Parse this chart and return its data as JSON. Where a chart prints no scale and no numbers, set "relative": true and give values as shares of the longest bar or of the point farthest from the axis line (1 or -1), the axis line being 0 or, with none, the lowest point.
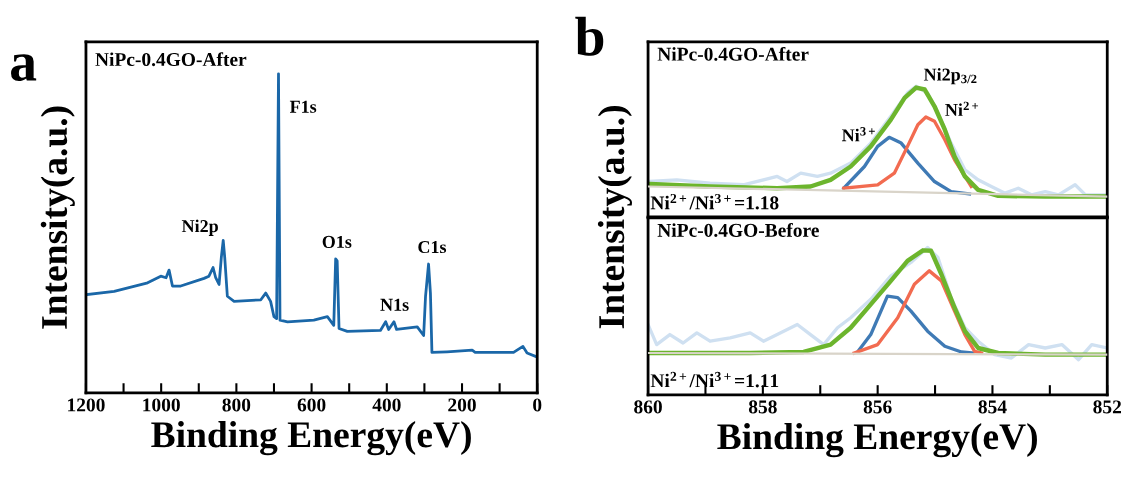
{
  "chart_data": [
    {
      "type": "line",
      "title": "a",
      "xlabel": "Binding Energy(eV)",
      "ylabel": "Intensity(a.u.)",
      "relative": true,
      "tick_labels": "x",
      "grid": false,
      "legend": false,
      "xlim": [
        1200,
        0
      ],
      "xticks": [
        1200,
        {
          "value": 1100,
          "label": null
        },
        1000,
        {
          "value": 900,
          "label": null
        },
        800,
        {
          "value": 700,
          "label": null
        },
        600,
        {
          "value": 500,
          "label": null
        },
        400,
        {
          "value": 300,
          "label": null
        },
        200,
        {
          "value": 100,
          "label": null
        },
        0
      ],
      "series": [
        {
          "color": "#1a67a8",
          "x": [
            1200,
            1125,
            1036,
            1001,
            987,
            979,
            970,
            948,
            886,
            873,
            862,
            855,
            846,
            840,
            835,
            831,
            824,
            806,
            735,
            722,
            709,
            700,
            693,
            688,
            684,
            664,
            594,
            558,
            541,
            536,
            532,
            527,
            505,
            417,
            403,
            395,
            381,
            374,
            319,
            302,
            297,
            289,
            284,
            280,
            240,
            173,
            165,
            63,
            38,
            27,
            3
          ],
          "values": [
            0.308,
            0.318,
            0.345,
            0.366,
            0.361,
            0.385,
            0.335,
            0.335,
            0.359,
            0.366,
            0.393,
            0.361,
            0.34,
            0.425,
            0.478,
            0.425,
            0.303,
            0.287,
            0.292,
            0.313,
            0.287,
            0.239,
            0.233,
            1.0,
            0.228,
            0.223,
            0.228,
            0.239,
            0.212,
            0.42,
            0.414,
            0.202,
            0.193,
            0.196,
            0.223,
            0.199,
            0.223,
            0.199,
            0.207,
            0.18,
            0.303,
            0.404,
            0.313,
            0.127,
            0.129,
            0.134,
            0.127,
            0.127,
            0.146,
            0.125,
            0.114
          ]
        }
      ],
      "annotations": [
        "NiPc-0.4GO-After",
        {
          "text": "Ni2p",
          "x": 835,
          "y": 0.478
        },
        {
          "text": "F1s",
          "x": 688,
          "y": 1.0
        },
        {
          "text": "O1s",
          "x": 536,
          "y": 0.42
        },
        {
          "text": "N1s",
          "x": 381,
          "y": 0.223
        },
        {
          "text": "C1s",
          "x": 289,
          "y": 0.404
        }
      ]
    },
    {
      "type": "line",
      "title": "b",
      "ylabel": "Intensity(a.u.)",
      "relative": true,
      "tick_labels": false,
      "grid": false,
      "legend": false,
      "xlim": [
        860,
        852
      ],
      "series": [
        {
          "color": "#cfe0f1",
          "x": [
            859.97,
            859.5,
            858.92,
            858.34,
            857.75,
            857.58,
            857.34,
            857.05,
            856.82,
            856.47,
            856.12,
            855.77,
            855.48,
            855.33,
            855.13,
            854.95,
            854.72,
            854.48,
            854.25,
            854.02,
            853.78,
            853.55,
            853.32,
            853.08,
            852.85,
            852.56,
            852.38,
            852.0
          ],
          "values": [
            0.271,
            0.284,
            0.258,
            0.246,
            0.31,
            0.271,
            0.335,
            0.31,
            0.335,
            0.412,
            0.565,
            0.77,
            0.949,
            1.0,
            0.949,
            0.796,
            0.565,
            0.361,
            0.284,
            0.233,
            0.182,
            0.22,
            0.169,
            0.194,
            0.169,
            0.246,
            0.169,
            0.169
          ]
        },
        {
          "color": "#d9d4c9",
          "x": [
            860,
            852
          ],
          "values": [
            0.233,
            0.156
          ]
        },
        {
          "color": "#3f7ab5",
          "x": [
            856.59,
            856.23,
            856.0,
            855.8,
            855.59,
            855.3,
            855.01,
            854.72,
            854.4
          ],
          "values": [
            0.22,
            0.386,
            0.54,
            0.609,
            0.565,
            0.412,
            0.271,
            0.194,
            0.176
          ]
        },
        {
          "color": "#f26b50",
          "x": [
            856.59,
            856.0,
            855.71,
            855.48,
            855.3,
            855.16,
            855.01,
            854.83,
            854.66,
            854.48,
            854.37
          ],
          "values": [
            0.22,
            0.246,
            0.335,
            0.54,
            0.706,
            0.765,
            0.732,
            0.591,
            0.437,
            0.31,
            0.233
          ]
        },
        {
          "color": "#6cb52d",
          "x": [
            859.97,
            858.92,
            857.75,
            857.17,
            856.82,
            856.47,
            856.12,
            855.77,
            855.53,
            855.33,
            855.18,
            855.01,
            854.83,
            854.66,
            854.48,
            854.25,
            853.9,
            853.08,
            852.0
          ],
          "values": [
            0.253,
            0.233,
            0.22,
            0.233,
            0.284,
            0.386,
            0.54,
            0.745,
            0.911,
            0.99,
            0.975,
            0.847,
            0.668,
            0.463,
            0.31,
            0.207,
            0.161,
            0.156,
            0.156
          ]
        }
      ],
      "annotations": [
        "NiPc-0.4GO-After",
        "Ni$^{2+}$/Ni$^{3+}$=1.18",
        {
          "text": "Ni2p$_{3/2}$",
          "x": 855.2,
          "y": 0.99
        },
        {
          "text": "Ni$^{3+}$",
          "x": 855.95,
          "y": 0.6
        },
        {
          "text": "Ni$^{2+}$",
          "x": 854.95,
          "y": 0.72
        }
      ]
    },
    {
      "type": "line",
      "xlabel": "Binding Energy(eV)",
      "relative": true,
      "tick_labels": "x",
      "grid": false,
      "legend": false,
      "xlim": [
        860,
        852
      ],
      "xticks": [
        860,
        {
          "value": 859,
          "label": null
        },
        858,
        {
          "value": 857,
          "label": null
        },
        856,
        {
          "value": 855,
          "label": null
        },
        854,
        {
          "value": 853,
          "label": null
        },
        852
      ],
      "series": [
        {
          "color": "#cfe0f1",
          "x": [
            860.0,
            859.85,
            859.62,
            859.39,
            859.15,
            858.92,
            858.57,
            858.22,
            857.99,
            857.75,
            857.4,
            857.17,
            856.94,
            856.7,
            856.47,
            856.12,
            855.77,
            855.42,
            855.13,
            854.95,
            854.72,
            854.48,
            854.25,
            853.96,
            853.67,
            853.37,
            853.08,
            852.79,
            852.5,
            852.27,
            852.0
          ],
          "values": [
            0.477,
            0.341,
            0.409,
            0.352,
            0.42,
            0.364,
            0.386,
            0.42,
            0.364,
            0.409,
            0.477,
            0.409,
            0.341,
            0.455,
            0.523,
            0.648,
            0.807,
            0.898,
            1.0,
            0.932,
            0.659,
            0.455,
            0.364,
            0.273,
            0.25,
            0.341,
            0.318,
            0.341,
            0.239,
            0.341,
            0.318
          ]
        },
        {
          "color": "#d9d4c9",
          "x": [
            860,
            852
          ],
          "values": [
            0.284,
            0.273
          ]
        },
        {
          "color": "#3f7ab5",
          "x": [
            856.35,
            856.12,
            855.83,
            855.65,
            855.42,
            855.13,
            854.83,
            854.54,
            854.34
          ],
          "values": [
            0.291,
            0.409,
            0.67,
            0.659,
            0.568,
            0.432,
            0.33,
            0.291,
            0.284
          ]
        },
        {
          "color": "#f26b50",
          "x": [
            856.41,
            856.0,
            855.65,
            855.36,
            855.1,
            854.89,
            854.66,
            854.48,
            854.31,
            854.19
          ],
          "values": [
            0.284,
            0.341,
            0.523,
            0.75,
            0.841,
            0.773,
            0.568,
            0.409,
            0.295,
            0.284
          ]
        },
        {
          "color": "#6cb52d",
          "x": [
            859.97,
            858.22,
            857.29,
            856.82,
            856.47,
            856.12,
            855.77,
            855.48,
            855.21,
            855.07,
            854.89,
            854.66,
            854.48,
            854.25,
            853.9,
            853.08,
            852.0
          ],
          "values": [
            0.284,
            0.284,
            0.291,
            0.341,
            0.455,
            0.614,
            0.773,
            0.909,
            0.98,
            0.977,
            0.818,
            0.591,
            0.432,
            0.318,
            0.284,
            0.273,
            0.273
          ]
        }
      ],
      "annotations": [
        "NiPc-0.4GO-Before",
        "Ni$^{2+}$/Ni$^{3+}$=1.11"
      ]
    }
  ]
}
